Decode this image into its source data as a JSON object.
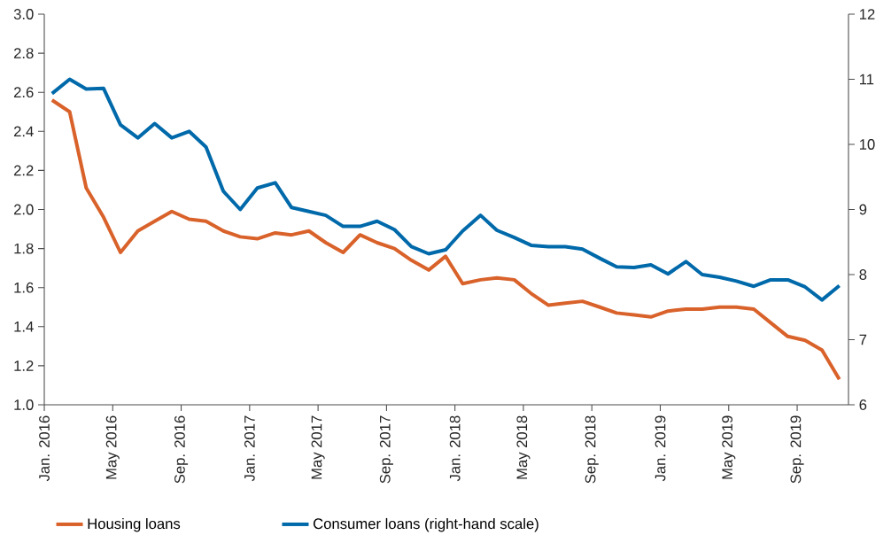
{
  "chart_data": {
    "type": "line",
    "x": [
      "2016-01-15",
      "2016-02-15",
      "2016-03-15",
      "2016-04-15",
      "2016-05-15",
      "2016-06-15",
      "2016-07-15",
      "2016-08-15",
      "2016-09-15",
      "2016-10-15",
      "2016-11-15",
      "2016-12-15",
      "2017-01-15",
      "2017-02-15",
      "2017-03-15",
      "2017-04-15",
      "2017-05-15",
      "2017-06-15",
      "2017-07-15",
      "2017-08-15",
      "2017-09-15",
      "2017-10-15",
      "2017-11-15",
      "2017-12-15",
      "2018-01-15",
      "2018-02-15",
      "2018-03-15",
      "2018-04-15",
      "2018-05-15",
      "2018-06-15",
      "2018-07-15",
      "2018-08-15",
      "2018-09-15",
      "2018-10-15",
      "2018-11-15",
      "2018-12-15",
      "2019-01-15",
      "2019-02-15",
      "2019-03-15",
      "2019-04-15",
      "2019-05-15",
      "2019-06-15",
      "2019-07-15",
      "2019-08-15",
      "2019-09-15",
      "2019-10-15",
      "2019-11-15"
    ],
    "series": [
      {
        "name": "Housing loans",
        "color": "#d9622b",
        "values": [
          2.56,
          2.5,
          2.11,
          1.96,
          1.78,
          1.89,
          1.94,
          1.99,
          1.95,
          1.94,
          1.89,
          1.86,
          1.85,
          1.88,
          1.87,
          1.89,
          1.83,
          1.78,
          1.87,
          1.83,
          1.8,
          1.74,
          1.69,
          1.76,
          1.62,
          1.64,
          1.65,
          1.64,
          1.57,
          1.51,
          1.52,
          1.53,
          1.5,
          1.47,
          1.46,
          1.45,
          1.48,
          1.49,
          1.49,
          1.5,
          1.5,
          1.49,
          1.42,
          1.35,
          1.33,
          1.28,
          1.13
        ]
      },
      {
        "name": "Consumer loans (right-hand scale)",
        "color": "#0069aa",
        "axis": "y2",
        "values": [
          10.78,
          11.0,
          10.85,
          10.86,
          10.3,
          10.1,
          10.32,
          10.1,
          10.2,
          9.96,
          9.28,
          9.0,
          9.33,
          9.41,
          9.03,
          8.97,
          8.91,
          8.74,
          8.74,
          8.82,
          8.69,
          8.43,
          8.32,
          8.38,
          8.67,
          8.91,
          8.68,
          8.57,
          8.45,
          8.43,
          8.43,
          8.39,
          8.25,
          8.12,
          8.11,
          8.15,
          8.01,
          8.2,
          8.0,
          7.96,
          7.9,
          7.82,
          7.92,
          7.92,
          7.81,
          7.61,
          7.83
        ]
      }
    ],
    "xlim": [
      "2016-01",
      "2019-12"
    ],
    "xticks": [
      {
        "value": "2016-01",
        "label": "Jan. 2016"
      },
      {
        "value": "2016-05",
        "label": "May 2016"
      },
      {
        "value": "2016-09",
        "label": "Sep. 2016"
      },
      {
        "value": "2017-01",
        "label": "Jan. 2017"
      },
      {
        "value": "2017-05",
        "label": "May 2017"
      },
      {
        "value": "2017-09",
        "label": "Sep. 2017"
      },
      {
        "value": "2018-01",
        "label": "Jan. 2018"
      },
      {
        "value": "2018-05",
        "label": "May 2018"
      },
      {
        "value": "2018-09",
        "label": "Sep. 2018"
      },
      {
        "value": "2019-01",
        "label": "Jan. 2019"
      },
      {
        "value": "2019-05",
        "label": "May 2019"
      },
      {
        "value": "2019-09",
        "label": "Sep. 2019"
      }
    ],
    "ylim": [
      1.0,
      3.0
    ],
    "yticks": [
      {
        "value": 1.0,
        "label": "1.0"
      },
      {
        "value": 1.2,
        "label": "1.2"
      },
      {
        "value": 1.4,
        "label": "1.4"
      },
      {
        "value": 1.6,
        "label": "1.6"
      },
      {
        "value": 1.8,
        "label": "1.8"
      },
      {
        "value": 2.0,
        "label": "2.0"
      },
      {
        "value": 2.2,
        "label": "2.2"
      },
      {
        "value": 2.4,
        "label": "2.4"
      },
      {
        "value": 2.6,
        "label": "2.6"
      },
      {
        "value": 2.8,
        "label": "2.8"
      },
      {
        "value": 3.0,
        "label": "3.0"
      }
    ],
    "y2lim": [
      6,
      12
    ],
    "y2ticks": [
      6,
      7,
      8,
      9,
      10,
      11,
      12
    ],
    "legend": "bottom",
    "marker": "none",
    "line_style": "solid"
  }
}
